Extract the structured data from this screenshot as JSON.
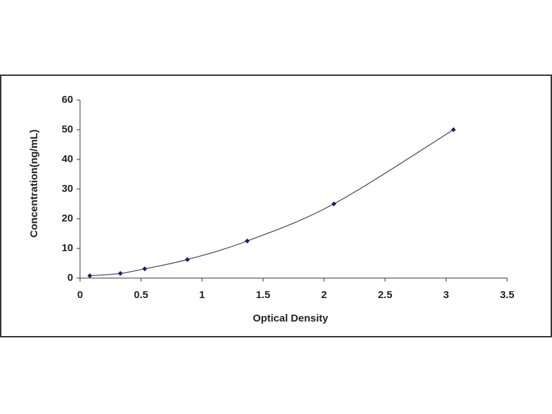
{
  "chart_data": {
    "type": "scatter",
    "x_label": "Optical Density",
    "y_label": "Concentration(ng/mL)",
    "x": [
      0.08,
      0.33,
      0.53,
      0.88,
      1.37,
      2.08,
      3.06
    ],
    "values": [
      0.78,
      1.56,
      3.12,
      6.25,
      12.5,
      25,
      50
    ],
    "color": "#1c1c6b",
    "line_color": "#3c3c6c",
    "line": true,
    "grid": false,
    "xlim": [
      0,
      3.5
    ],
    "xticks": [
      0,
      0.5,
      1,
      1.5,
      2,
      2.5,
      3,
      3.5
    ],
    "ylim": [
      0,
      60
    ],
    "yticks": [
      0,
      10,
      20,
      30,
      40,
      50,
      60
    ]
  }
}
